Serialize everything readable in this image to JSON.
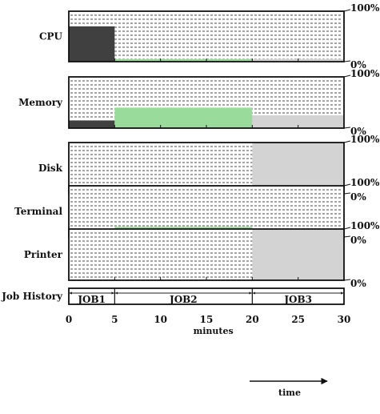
{
  "chart_data": {
    "type": "area",
    "xlabel": "minutes",
    "time_arrow_label": "time",
    "x_ticks": [
      0,
      5,
      10,
      15,
      20,
      25,
      30
    ],
    "xlim": [
      0,
      30
    ],
    "ylim": [
      0,
      100
    ],
    "y_top_label": "100%",
    "y_bottom_label": "0%",
    "grid": "dashed horizontal",
    "resources": [
      {
        "name": "CPU",
        "segments": [
          {
            "job": "JOB1",
            "x0": 0,
            "x1": 5,
            "value": 70
          },
          {
            "job": "JOB2",
            "x0": 5,
            "x1": 20,
            "value": 5
          },
          {
            "job": "JOB3",
            "x0": 20,
            "x1": 30,
            "value": 5
          }
        ]
      },
      {
        "name": "Memory",
        "segments": [
          {
            "job": "JOB1",
            "x0": 0,
            "x1": 5,
            "value": 15
          },
          {
            "job": "JOB2",
            "x0": 5,
            "x1": 20,
            "value": 40
          },
          {
            "job": "JOB3",
            "x0": 20,
            "x1": 30,
            "value": 25
          }
        ]
      },
      {
        "name": "Disk",
        "segments": [
          {
            "job": "JOB3",
            "x0": 20,
            "x1": 30,
            "value": 100
          }
        ]
      },
      {
        "name": "Terminal",
        "segments": [
          {
            "job": "JOB2",
            "x0": 5,
            "x1": 20,
            "value": 20
          }
        ]
      },
      {
        "name": "Printer",
        "segments": [
          {
            "job": "JOB3",
            "x0": 20,
            "x1": 30,
            "value": 100
          }
        ]
      }
    ],
    "job_history": {
      "label": "Job History",
      "jobs": [
        {
          "name": "JOB1",
          "start": 0,
          "end": 5
        },
        {
          "name": "JOB2",
          "start": 5,
          "end": 20
        },
        {
          "name": "JOB3",
          "start": 20,
          "end": 30
        }
      ]
    },
    "job_colors": {
      "JOB1": "#404040",
      "JOB2": "#98db9a",
      "JOB3": "#d3d3d3"
    }
  }
}
